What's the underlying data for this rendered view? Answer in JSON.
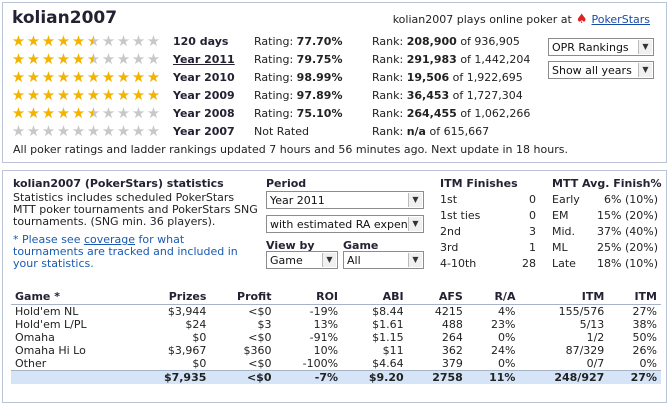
{
  "player": {
    "name": "kolian2007",
    "plays_text": "kolian2007 plays online poker at",
    "site": "PokerStars",
    "spade_icon": "spade-icon"
  },
  "ratings": [
    {
      "period": "120 days",
      "link": false,
      "stars": 5.5,
      "rating_label": "Rating:",
      "rating": "77.70%",
      "rank_label": "Rank:",
      "rank": "208,900",
      "of": "of 936,905"
    },
    {
      "period": "Year 2011",
      "link": true,
      "stars": 5.5,
      "rating_label": "Rating:",
      "rating": "79.75%",
      "rank_label": "Rank:",
      "rank": "291,983",
      "of": "of 1,442,204"
    },
    {
      "period": "Year 2010",
      "link": false,
      "stars": 10,
      "rating_label": "Rating:",
      "rating": "98.99%",
      "rank_label": "Rank:",
      "rank": "19,506",
      "of": "of 1,922,695"
    },
    {
      "period": "Year 2009",
      "link": false,
      "stars": 10,
      "rating_label": "Rating:",
      "rating": "97.89%",
      "rank_label": "Rank:",
      "rank": "36,453",
      "of": "of 1,727,304"
    },
    {
      "period": "Year 2008",
      "link": false,
      "stars": 5.5,
      "rating_label": "Rating:",
      "rating": "75.10%",
      "rank_label": "Rank:",
      "rank": "264,455",
      "of": "of 1,062,266"
    },
    {
      "period": "Year 2007",
      "link": false,
      "stars": 0,
      "rating_label": "Not Rated",
      "rating": "",
      "rank_label": "Rank:",
      "rank": "n/a",
      "of": "of 615,667"
    }
  ],
  "selects": {
    "rankings": "OPR Rankings",
    "years": "Show all years"
  },
  "update_note": "All poker ratings and ladder rankings updated 7 hours and 56 minutes ago. Next update in 18 hours.",
  "stats": {
    "title": "kolian2007 (PokerStars) statistics",
    "description": "Statistics includes scheduled PokerStars MTT poker tournaments and PokerStars SNG tournaments. (SNG min. 36 players).",
    "note_prefix": "* Please see ",
    "note_link": "coverage",
    "note_suffix": " for what tournaments are tracked and included in your statistics.",
    "period_label": "Period",
    "period_value": "Year 2011",
    "ra_value": "with estimated RA expen",
    "viewby_label": "View by",
    "viewby_value": "Game",
    "game_label": "Game",
    "game_value": "All"
  },
  "itm": {
    "title": "ITM Finishes",
    "rows": [
      {
        "label": "1st",
        "value": "0"
      },
      {
        "label": "1st ties",
        "value": "0"
      },
      {
        "label": "2nd",
        "value": "3"
      },
      {
        "label": "3rd",
        "value": "1"
      },
      {
        "label": "4-10th",
        "value": "28"
      }
    ]
  },
  "mtt": {
    "title": "MTT Avg. Finish%",
    "rows": [
      {
        "label": "Early",
        "value": "6% (10%)"
      },
      {
        "label": "EM",
        "value": "15% (20%)"
      },
      {
        "label": "Mid.",
        "value": "37% (40%)"
      },
      {
        "label": "ML",
        "value": "25% (20%)"
      },
      {
        "label": "Late",
        "value": "18% (10%)"
      }
    ]
  },
  "table": {
    "headers": [
      "Game *",
      "Prizes",
      "Profit",
      "ROI",
      "ABI",
      "AFS",
      "R/A",
      "ITM",
      "ITM"
    ],
    "rows": [
      [
        "Hold'em NL",
        "$3,944",
        "<$0",
        "-19%",
        "$8.44",
        "4215",
        "4%",
        "155/576",
        "27%"
      ],
      [
        "Hold'em L/PL",
        "$24",
        "$3",
        "13%",
        "$1.61",
        "488",
        "23%",
        "5/13",
        "38%"
      ],
      [
        "Omaha",
        "$0",
        "<$0",
        "-91%",
        "$1.15",
        "264",
        "0%",
        "1/2",
        "50%"
      ],
      [
        "Omaha Hi Lo",
        "$3,967",
        "$360",
        "10%",
        "$11",
        "362",
        "24%",
        "87/329",
        "26%"
      ],
      [
        "Other",
        "$0",
        "<$0",
        "-100%",
        "$4.64",
        "379",
        "0%",
        "0/7",
        "0%"
      ]
    ],
    "total": [
      "",
      "$7,935",
      "<$0",
      "-7%",
      "$9.20",
      "2758",
      "11%",
      "248/927",
      "27%"
    ]
  },
  "colors": {
    "star_gold": "#f2b400",
    "star_gray": "#c8c8c8",
    "link_blue": "#1a4aa8",
    "total_row_bg": "#d5e5f7",
    "border": "#b9c4d6"
  }
}
